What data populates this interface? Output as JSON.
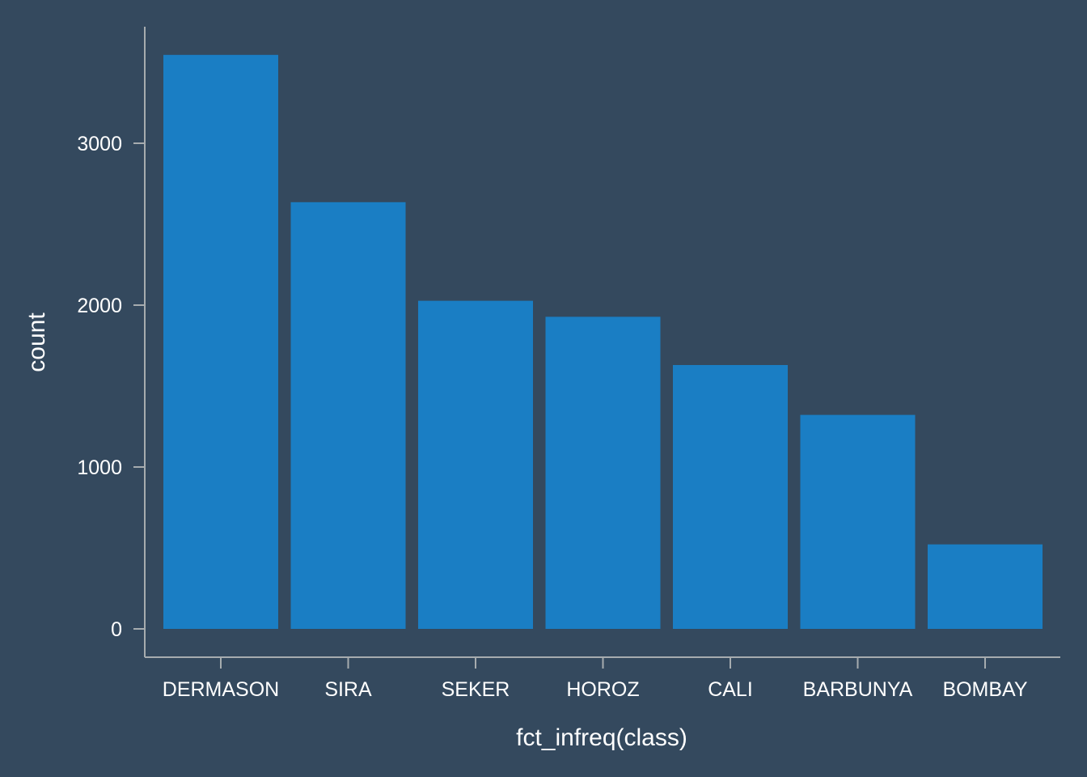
{
  "colors": {
    "background": "#34495E",
    "bar": "#1A7EC4",
    "axis": "#A6ACAF",
    "text": "#FFFFFF"
  },
  "chart_data": {
    "type": "bar",
    "title": "",
    "categories": [
      "DERMASON",
      "SIRA",
      "SEKER",
      "HOROZ",
      "CALI",
      "BARBUNYA",
      "BOMBAY"
    ],
    "values": [
      3546,
      2636,
      2027,
      1928,
      1630,
      1322,
      522
    ],
    "xlabel": "fct_infreq(class)",
    "ylabel": "count",
    "ylim": [
      0,
      3723
    ],
    "yticks": [
      0,
      1000,
      2000,
      3000
    ],
    "grid": false,
    "legend": "none"
  }
}
